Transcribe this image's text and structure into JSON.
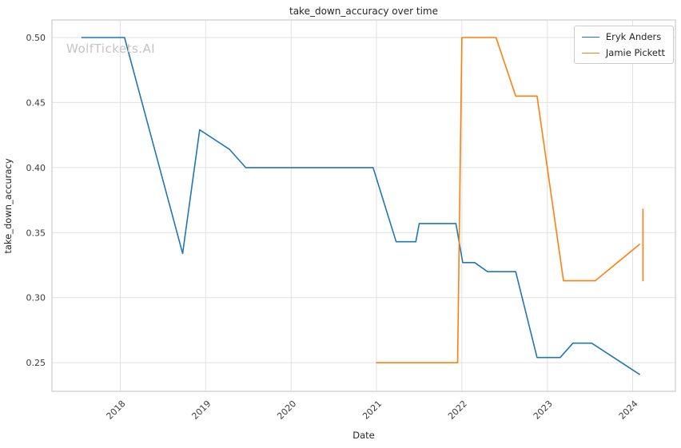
{
  "watermark": {
    "text": "WolfTickets.AI",
    "color": "#c4c4c4"
  },
  "chart_data": {
    "type": "line",
    "title": "take_down_accuracy over time",
    "xlabel": "Date",
    "ylabel": "take_down_accuracy",
    "xlim": [
      2017.2,
      2024.5
    ],
    "ylim": [
      0.228,
      0.5135
    ],
    "grid": true,
    "legend_position": "upper right",
    "xticks": {
      "values": [
        2018,
        2019,
        2020,
        2021,
        2022,
        2023,
        2024
      ],
      "labels": [
        "2018",
        "2019",
        "2020",
        "2021",
        "2022",
        "2023",
        "2024"
      ]
    },
    "yticks": {
      "values": [
        0.25,
        0.3,
        0.35,
        0.4,
        0.45,
        0.5
      ],
      "labels": [
        "0.25",
        "0.30",
        "0.35",
        "0.40",
        "0.45",
        "0.50"
      ]
    },
    "series": [
      {
        "name": "Eryk Anders",
        "color": "#1f77b4",
        "x": [
          2017.55,
          2018.05,
          2018.73,
          2018.93,
          2019.28,
          2019.47,
          2020.96,
          2021.23,
          2021.46,
          2021.5,
          2021.93,
          2022.01,
          2022.15,
          2022.3,
          2022.63,
          2022.88,
          2023.15,
          2023.3,
          2023.52,
          2024.08
        ],
        "y": [
          0.5,
          0.5,
          0.334,
          0.429,
          0.414,
          0.4,
          0.4,
          0.343,
          0.343,
          0.357,
          0.357,
          0.327,
          0.327,
          0.32,
          0.32,
          0.254,
          0.254,
          0.265,
          0.265,
          0.241
        ]
      },
      {
        "name": "Jamie Pickett",
        "color": "#ff7f0e",
        "x": [
          2021.0,
          2021.95,
          2022.0,
          2022.4,
          2022.63,
          2022.88,
          2023.19,
          2023.56,
          2024.08
        ],
        "y": [
          0.25,
          0.25,
          0.5,
          0.5,
          0.455,
          0.455,
          0.313,
          0.313,
          0.341
        ]
      }
    ],
    "extra_segments": [
      {
        "color": "#ff7f0e",
        "x": 2024.12,
        "y1": 0.313,
        "y2": 0.368
      }
    ]
  },
  "style_colors": {
    "grid": "#e0e0e0",
    "frame": "#cccccc",
    "tick_text": "#3b3b3b"
  }
}
